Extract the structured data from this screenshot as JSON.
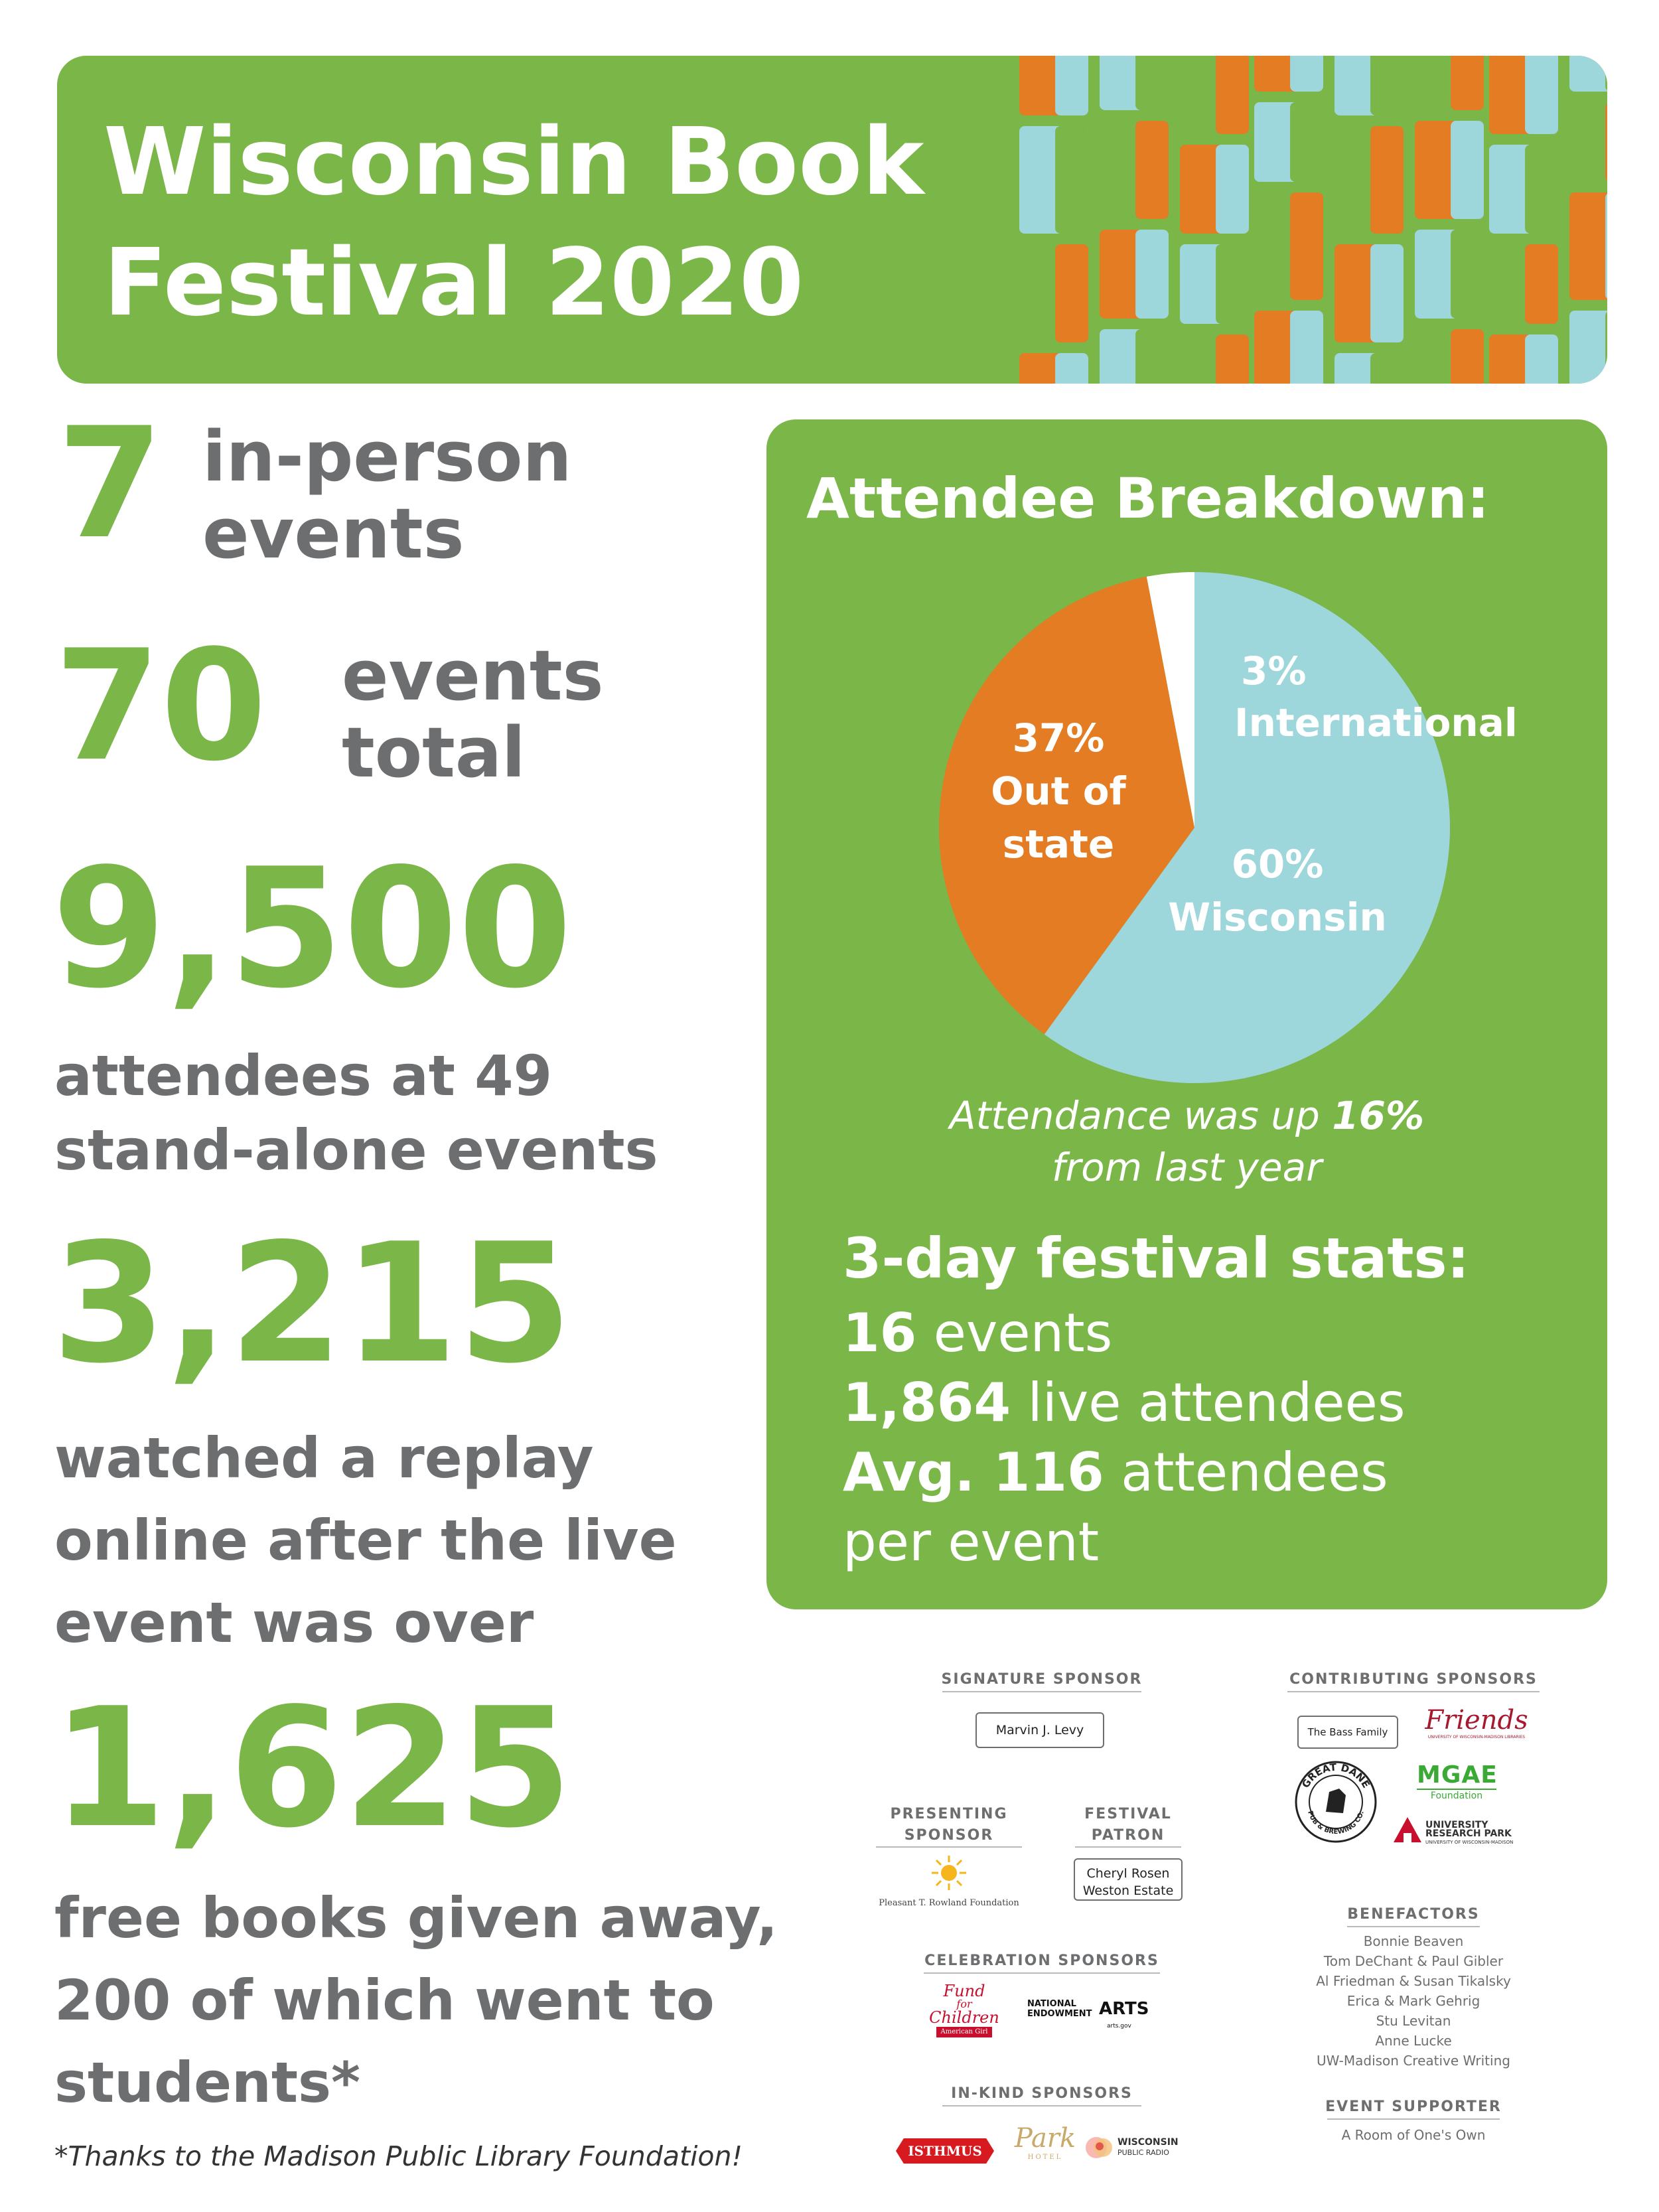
{
  "header": {
    "title_line1": "Wisconsin Book",
    "title_line2": "Festival 2020"
  },
  "stats": {
    "inperson": {
      "number": "7",
      "line1": "in-person",
      "line2": "events"
    },
    "total": {
      "number": "70",
      "line1": "events",
      "line2": "total"
    },
    "attendees": {
      "number": "9,500",
      "line1": "attendees at 49",
      "line2": "stand-alone events"
    },
    "replay": {
      "number": "3,215",
      "line1": "watched a replay",
      "line2": "online after the live",
      "line3": "event was over"
    },
    "books": {
      "number": "1,625",
      "line1": "free books given away,",
      "line2": "200 of which went to",
      "line3": "students*"
    }
  },
  "footnote": "*Thanks to the Madison Public Library Foundation!",
  "breakdown": {
    "title": "Attendee Breakdown:",
    "slices": [
      {
        "pct": "60%",
        "label": "Wisconsin",
        "value": 60,
        "color": "#9dd6db"
      },
      {
        "pct": "37%",
        "label": "Out of",
        "label2": "state",
        "value": 37,
        "color": "#e37c23"
      },
      {
        "pct": "3%",
        "label": "International",
        "value": 3,
        "color": "#ffffff"
      }
    ],
    "note_pre": "Attendance was up ",
    "note_bold": "16%",
    "note_line2": "from last year"
  },
  "festival_stats": {
    "title": "3-day festival stats:",
    "l1_bold": "16",
    "l1_rest": " events",
    "l2_bold": "1,864",
    "l2_rest": " live attendees",
    "l3_bold": "Avg. 116",
    "l3_rest": " attendees",
    "l4": "per event"
  },
  "sponsors": {
    "signature": {
      "heading": "SIGNATURE SPONSOR",
      "name": "Marvin J. Levy"
    },
    "presenting": {
      "heading1": "PRESENTING",
      "heading2": "SPONSOR",
      "name": "Pleasant T. Rowland Foundation"
    },
    "patron": {
      "heading1": "FESTIVAL",
      "heading2": "PATRON",
      "name1": "Cheryl Rosen",
      "name2": "Weston Estate"
    },
    "celebration": {
      "heading": "CELEBRATION SPONSORS",
      "fund1": "Fund",
      "fund2": "for",
      "fund3": "Children",
      "ag": "American Girl",
      "nea1": "NATIONAL",
      "nea2": "ENDOWMENT",
      "nea3": "ARTS",
      "nea4": "arts.gov"
    },
    "inkind": {
      "heading": "IN-KIND SPONSORS",
      "isthmus": "ISTHMUS",
      "park1": "Park",
      "park2": "HOTEL",
      "wpr1": "WISCONSIN",
      "wpr2": "PUBLIC RADIO"
    },
    "contributing": {
      "heading": "CONTRIBUTING SPONSORS",
      "bass": "The Bass Family",
      "friends": "Friends",
      "friends_sub": "UNIVERSITY OF WISCONSIN-MADISON LIBRARIES",
      "gd1": "GREAT DANE",
      "gd2": "PUB & BREWING CO.",
      "mgae": "MGAE",
      "mgae_sub": "Foundation",
      "urp1": "UNIVERSITY",
      "urp2": "RESEARCH PARK",
      "urp3": "UNIVERSITY OF WISCONSIN-MADISON"
    },
    "benefactors": {
      "heading": "BENEFACTORS",
      "names": [
        "Bonnie Beaven",
        "Tom DeChant & Paul Gibler",
        "Al Friedman & Susan Tikalsky",
        "Erica & Mark Gehrig",
        "Stu Levitan",
        "Anne Lucke",
        "UW-Madison Creative Writing"
      ]
    },
    "supporter": {
      "heading": "EVENT SUPPORTER",
      "name": "A Room of One's Own"
    }
  },
  "colors": {
    "green": "#7ab648",
    "orange": "#e37c23",
    "light_blue": "#9dd6db",
    "gray": "#6d6e70"
  }
}
